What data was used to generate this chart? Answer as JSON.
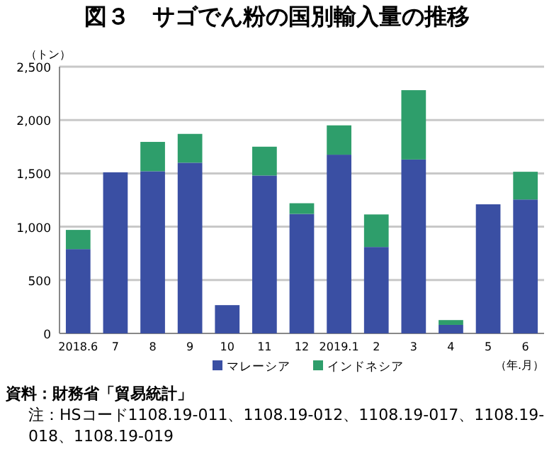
{
  "chart_data": {
    "type": "bar",
    "stacked": true,
    "title": "図３　サゴでん粉の国別輸入量の推移",
    "ylabel": "（トン）",
    "xlabel": "（年.月）",
    "categories": [
      "2018.6",
      "7",
      "8",
      "9",
      "10",
      "11",
      "12",
      "2019.1",
      "2",
      "3",
      "4",
      "5",
      "6"
    ],
    "series": [
      {
        "name": "マレーシア",
        "color": "#3a4fa3",
        "values": [
          790,
          1510,
          1520,
          1600,
          265,
          1480,
          1120,
          1675,
          810,
          1630,
          80,
          1210,
          1255
        ]
      },
      {
        "name": "インドネシア",
        "color": "#2e9e6b",
        "values": [
          180,
          0,
          275,
          270,
          0,
          270,
          100,
          275,
          305,
          650,
          45,
          0,
          260
        ]
      }
    ],
    "ylim": [
      0,
      2500
    ],
    "yticks": [
      {
        "value": 0,
        "label": "0"
      },
      {
        "value": 500,
        "label": "500"
      },
      {
        "value": 1000,
        "label": "1,000"
      },
      {
        "value": 1500,
        "label": "1,500"
      },
      {
        "value": 2000,
        "label": "2,000"
      },
      {
        "value": 2500,
        "label": "2,500"
      }
    ],
    "grid": "y",
    "legend": "bottom",
    "annotations": [
      "資料：財務省「貿易統計」",
      "注：HSコード1108.19-011、1108.19-012、1108.19-017、1108.19-018、1108.19-019"
    ]
  }
}
